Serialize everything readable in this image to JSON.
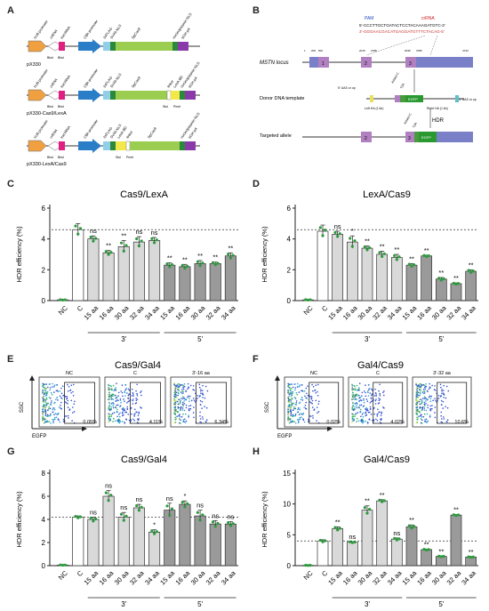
{
  "panel_letters": [
    "A",
    "B",
    "C",
    "D",
    "E",
    "F",
    "G",
    "H"
  ],
  "panel_A": {
    "constructs": [
      {
        "name": "pX330",
        "elements": [
          "hU6 promoter",
          "crRNA",
          "tracrRNA",
          "CBh promoter",
          "3xFLAG",
          "SV40 NLS",
          "SpCas9",
          "nucleoplasmin NLS",
          "bGH pA"
        ],
        "sites": [
          "BbsI",
          "BbsI"
        ]
      },
      {
        "name": "pX330-Cas9/LexA",
        "elements": [
          "hU6 promoter",
          "crRNA",
          "tracrRNA",
          "CBh promoter",
          "3xFLAG",
          "SV40 NLS",
          "SpCas9",
          "linker",
          "LexA BD",
          "nucleoplasmin NLS",
          "bGH pA"
        ],
        "sites": [
          "BbsI",
          "BbsI",
          "StuI",
          "PmeI"
        ]
      },
      {
        "name": "pX330-LexA/Cas9",
        "elements": [
          "hU6 promoter",
          "crRNA",
          "tracrRNA",
          "CBh promoter",
          "3xFLAG",
          "SV40 NLS",
          "LexA BD",
          "linker",
          "SpCas9",
          "nucleoplasmin NLS",
          "bGH pA"
        ],
        "sites": [
          "BbsI",
          "BbsI",
          "StuI",
          "PmeI"
        ]
      }
    ]
  },
  "panel_B": {
    "pam_label": "PAM",
    "crrna_label": "crRNA",
    "seq_top": "5'-CCCTTGCTGATACTCCTACAAAGATGTC-3'",
    "seq_bottom": "3'-GGGAACGACATGAGGATGTTTCTACAG-5'",
    "rows": [
      "MSTN locus",
      "Donor DNA template",
      "Targeted allele"
    ],
    "coords": [
      "1",
      "209",
      "506",
      "2015",
      "2788",
      "3035",
      "3786",
      "4733"
    ],
    "exons": [
      "1",
      "2",
      "3"
    ],
    "donor_labels": [
      "5' UAS or op",
      "Added C",
      "T2A",
      "EGFP",
      "3' UAS or op",
      "Left HA (1 kb)",
      "Right HA (1 kb)"
    ],
    "hdr": "HDR",
    "allele_labels": [
      "Added C",
      "T2A",
      "EGFP"
    ]
  },
  "facs": [
    {
      "title": "Cas9/Gal4",
      "xlabel": "EGFP",
      "ylabel": "SSC",
      "plots": [
        {
          "name": "NC",
          "pct": "0.05%"
        },
        {
          "name": "C",
          "pct": "4.11%"
        },
        {
          "name": "3'-16 aa",
          "pct": "6.34%"
        }
      ]
    },
    {
      "title": "Gal4/Cas9",
      "xlabel": "EGFP",
      "ylabel": "SSC",
      "plots": [
        {
          "name": "NC",
          "pct": "0.02%"
        },
        {
          "name": "C",
          "pct": "4.02%"
        },
        {
          "name": "3'-32 aa",
          "pct": "10.6%"
        }
      ]
    }
  ],
  "chart_data": [
    {
      "type": "bar",
      "panel": "C",
      "title": "Cas9/LexA",
      "ylabel": "HDR efficiency (%)",
      "ylim": [
        0,
        6
      ],
      "yticks": [
        0,
        2,
        4,
        6
      ],
      "categories": [
        "NC",
        "C",
        "15 aa",
        "16 aa",
        "30 aa",
        "32 aa",
        "34 aa",
        "15 aa",
        "16 aa",
        "30 aa",
        "32 aa",
        "34 aa"
      ],
      "values": [
        0.05,
        4.6,
        4.0,
        3.1,
        3.5,
        3.8,
        3.9,
        2.3,
        2.2,
        2.4,
        2.4,
        2.9
      ],
      "errors": [
        0.02,
        0.4,
        0.2,
        0.15,
        0.4,
        0.35,
        0.2,
        0.15,
        0.15,
        0.2,
        0.1,
        0.2
      ],
      "sig": [
        "",
        "",
        "ns",
        "**",
        "**",
        "ns",
        "ns",
        "**",
        "**",
        "**",
        "**",
        "**"
      ],
      "groups": [
        {
          "label": "3'",
          "from": 2,
          "to": 6
        },
        {
          "label": "5'",
          "from": 7,
          "to": 11
        }
      ],
      "reference_line": 4.6,
      "colors": [
        "#ffffff",
        "#ffffff",
        "#d9d9d9",
        "#d9d9d9",
        "#d9d9d9",
        "#d9d9d9",
        "#d9d9d9",
        "#9a9a9a",
        "#9a9a9a",
        "#9a9a9a",
        "#9a9a9a",
        "#9a9a9a"
      ]
    },
    {
      "type": "bar",
      "panel": "D",
      "title": "LexA/Cas9",
      "ylabel": "HDR efficiency (%)",
      "ylim": [
        0,
        6
      ],
      "yticks": [
        0,
        2,
        4,
        6
      ],
      "categories": [
        "NC",
        "C",
        "15 aa",
        "16 aa",
        "30 aa",
        "32 aa",
        "34 aa",
        "15 aa",
        "16 aa",
        "30 aa",
        "32 aa",
        "34 aa"
      ],
      "values": [
        0.05,
        4.5,
        4.3,
        3.8,
        3.4,
        3.0,
        2.8,
        2.3,
        2.9,
        1.4,
        1.1,
        1.9
      ],
      "errors": [
        0.02,
        0.4,
        0.2,
        0.4,
        0.15,
        0.2,
        0.2,
        0.1,
        0.05,
        0.1,
        0.05,
        0.1
      ],
      "sig": [
        "",
        "",
        "ns",
        "*",
        "**",
        "**",
        "**",
        "**",
        "**",
        "**",
        "**",
        "**"
      ],
      "groups": [
        {
          "label": "3'",
          "from": 2,
          "to": 6
        },
        {
          "label": "5'",
          "from": 7,
          "to": 11
        }
      ],
      "reference_line": 4.6,
      "colors": [
        "#ffffff",
        "#ffffff",
        "#d9d9d9",
        "#d9d9d9",
        "#d9d9d9",
        "#d9d9d9",
        "#d9d9d9",
        "#9a9a9a",
        "#9a9a9a",
        "#9a9a9a",
        "#9a9a9a",
        "#9a9a9a"
      ]
    },
    {
      "type": "bar",
      "panel": "G",
      "title": "Cas9/Gal4",
      "ylabel": "HDR efficiency (%)",
      "ylim": [
        0,
        8
      ],
      "yticks": [
        0,
        2,
        4,
        6,
        8
      ],
      "categories": [
        "NC",
        "C",
        "15 aa",
        "16 aa",
        "30 aa",
        "32 aa",
        "34 aa",
        "15 aa",
        "16 aa",
        "30 aa",
        "32 aa",
        "34 aa"
      ],
      "values": [
        0.05,
        4.2,
        4.0,
        6.0,
        4.2,
        5.0,
        2.9,
        4.8,
        5.3,
        4.3,
        3.6,
        3.6
      ],
      "errors": [
        0.02,
        0.1,
        0.2,
        0.5,
        0.4,
        0.3,
        0.2,
        0.6,
        0.3,
        0.5,
        0.3,
        0.2
      ],
      "sig": [
        "",
        "",
        "ns",
        "ns",
        "ns",
        "ns",
        "*",
        "ns",
        "*",
        "ns",
        "ns",
        "ns"
      ],
      "groups": [
        {
          "label": "3'",
          "from": 2,
          "to": 6
        },
        {
          "label": "5'",
          "from": 7,
          "to": 11
        }
      ],
      "reference_line": 4.2,
      "colors": [
        "#ffffff",
        "#ffffff",
        "#d9d9d9",
        "#d9d9d9",
        "#d9d9d9",
        "#d9d9d9",
        "#d9d9d9",
        "#9a9a9a",
        "#9a9a9a",
        "#9a9a9a",
        "#9a9a9a",
        "#9a9a9a"
      ]
    },
    {
      "type": "bar",
      "panel": "H",
      "title": "Gal4/Cas9",
      "ylabel": "HDR efficiency (%)",
      "ylim": [
        0,
        15
      ],
      "yticks": [
        0,
        5,
        10,
        15
      ],
      "categories": [
        "NC",
        "C",
        "15 aa",
        "16 aa",
        "30 aa",
        "32 aa",
        "34 aa",
        "15 aa",
        "16 aa",
        "30 aa",
        "32 aa",
        "34 aa"
      ],
      "values": [
        0.05,
        4.0,
        6.0,
        3.8,
        9.0,
        10.5,
        4.3,
        6.3,
        2.6,
        1.5,
        8.2,
        1.4
      ],
      "errors": [
        0.02,
        0.2,
        0.3,
        0.1,
        0.7,
        0.2,
        0.2,
        0.3,
        0.1,
        0.05,
        0.1,
        0.05
      ],
      "sig": [
        "",
        "",
        "**",
        "ns",
        "**",
        "**",
        "ns",
        "**",
        "**",
        "**",
        "**",
        "**"
      ],
      "groups": [
        {
          "label": "3'",
          "from": 2,
          "to": 6
        },
        {
          "label": "5'",
          "from": 7,
          "to": 11
        }
      ],
      "reference_line": 4.0,
      "colors": [
        "#ffffff",
        "#ffffff",
        "#d9d9d9",
        "#d9d9d9",
        "#d9d9d9",
        "#d9d9d9",
        "#d9d9d9",
        "#9a9a9a",
        "#9a9a9a",
        "#9a9a9a",
        "#9a9a9a",
        "#9a9a9a"
      ]
    }
  ]
}
